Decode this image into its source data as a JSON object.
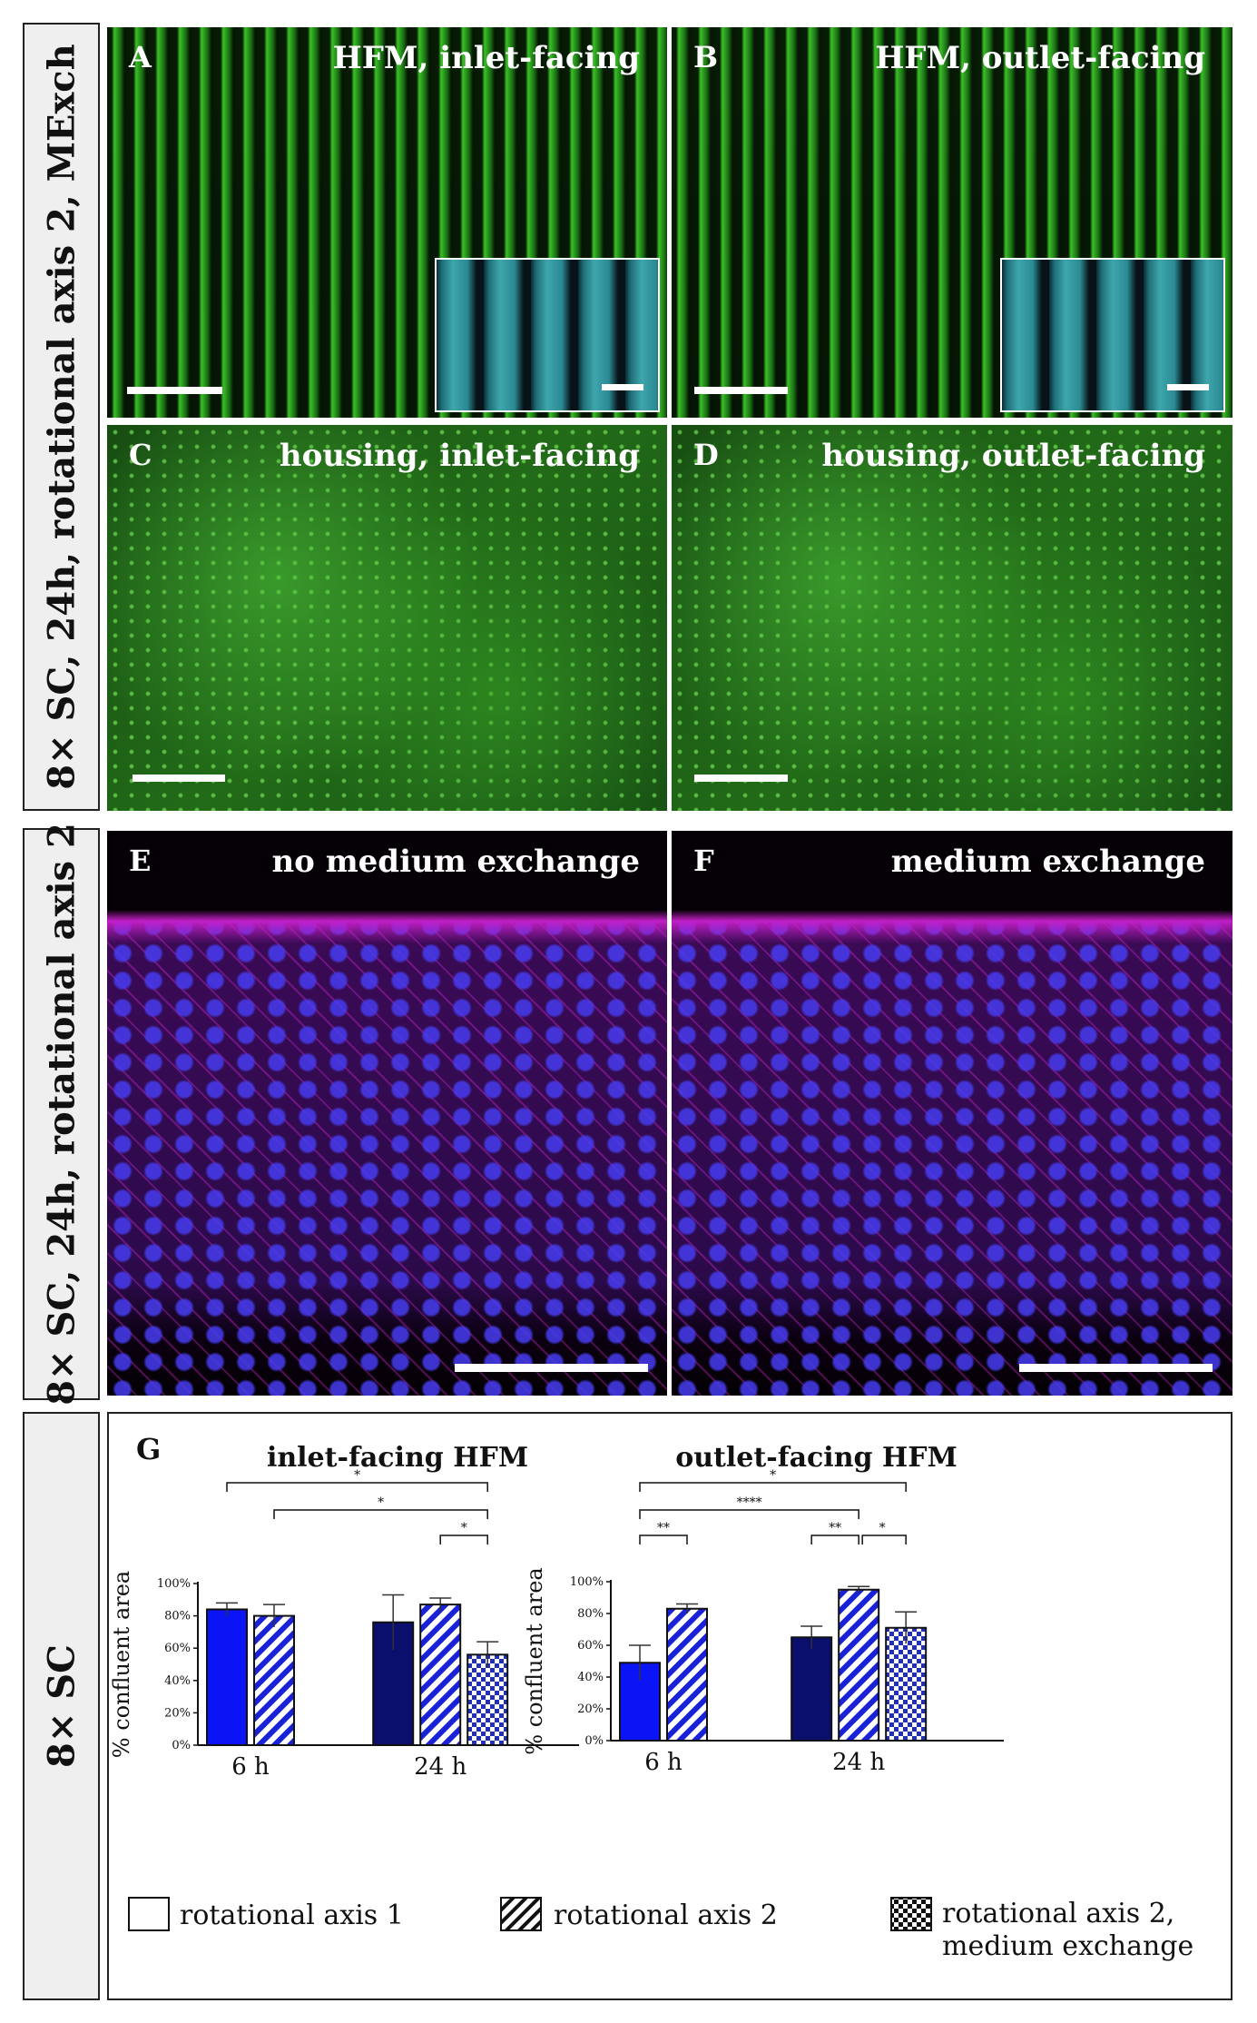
{
  "row1_label": "8× SC, 24h, rotational axis 2, MExch",
  "row2_label": "8× SC, 24h, rotational axis 2",
  "row3_label": "8× SC",
  "panels": {
    "A": {
      "letter": "A",
      "title": "HFM, inlet-facing"
    },
    "B": {
      "letter": "B",
      "title": "HFM, outlet-facing"
    },
    "C": {
      "letter": "C",
      "title": "housing, inlet-facing"
    },
    "D": {
      "letter": "D",
      "title": "housing, outlet-facing"
    },
    "E": {
      "letter": "E",
      "title": "no medium exchange"
    },
    "F": {
      "letter": "F",
      "title": "medium exchange"
    },
    "G": {
      "letter": "G"
    }
  },
  "colors": {
    "bright_blue": "#0a14f5",
    "navy": "#0a0f6e",
    "hatch_blue": "#1a22d8",
    "check_blue": "#2230b8"
  },
  "chart_data": [
    {
      "type": "bar",
      "title": "inlet-facing HFM",
      "ylabel": "% confluent area",
      "ylim": [
        0,
        100
      ],
      "yticks": [
        "0%",
        "20%",
        "40%",
        "60%",
        "80%",
        "100%"
      ],
      "categories": [
        "6 h",
        "24 h"
      ],
      "series": [
        {
          "name": "rotational axis 1",
          "values": [
            84,
            76
          ],
          "errors": [
            4,
            17
          ]
        },
        {
          "name": "rotational axis 2",
          "values": [
            80,
            87
          ],
          "errors": [
            7,
            4
          ]
        },
        {
          "name": "rotational axis 2, medium exchange",
          "values": [
            null,
            56
          ],
          "errors": [
            null,
            8
          ]
        }
      ],
      "significance": [
        {
          "label": "*",
          "from": "6 h / rotational axis 1",
          "to": "24 h / rotational axis 2, medium exchange"
        },
        {
          "label": "*",
          "from": "6 h / rotational axis 2",
          "to": "24 h / rotational axis 2, medium exchange"
        },
        {
          "label": "*",
          "from": "24 h / rotational axis 2",
          "to": "24 h / rotational axis 2, medium exchange"
        }
      ]
    },
    {
      "type": "bar",
      "title": "outlet-facing HFM",
      "ylabel": "% confluent area",
      "ylim": [
        0,
        100
      ],
      "yticks": [
        "0%",
        "20%",
        "40%",
        "60%",
        "80%",
        "100%"
      ],
      "categories": [
        "6 h",
        "24 h"
      ],
      "series": [
        {
          "name": "rotational axis 1",
          "values": [
            49,
            65
          ],
          "errors": [
            11,
            7
          ]
        },
        {
          "name": "rotational axis 2",
          "values": [
            83,
            95
          ],
          "errors": [
            3,
            2
          ]
        },
        {
          "name": "rotational axis 2, medium exchange",
          "values": [
            null,
            71
          ],
          "errors": [
            null,
            10
          ]
        }
      ],
      "significance": [
        {
          "label": "*",
          "from": "6 h / rotational axis 1",
          "to": "24 h / rotational axis 2, medium exchange"
        },
        {
          "label": "****",
          "from": "6 h / rotational axis 1",
          "to": "24 h / rotational axis 2"
        },
        {
          "label": "**",
          "from": "6 h / rotational axis 1",
          "to": "6 h / rotational axis 2"
        },
        {
          "label": "**",
          "from": "24 h / rotational axis 1",
          "to": "24 h / rotational axis 2"
        },
        {
          "label": "*",
          "from": "24 h / rotational axis 2",
          "to": "24 h / rotational axis 2, medium exchange"
        }
      ]
    }
  ],
  "legend": [
    {
      "pattern": "solid",
      "label": "rotational axis 1"
    },
    {
      "pattern": "hatch",
      "label": "rotational axis 2"
    },
    {
      "pattern": "checker",
      "label_line1": "rotational axis 2,",
      "label_line2": "medium exchange"
    }
  ]
}
